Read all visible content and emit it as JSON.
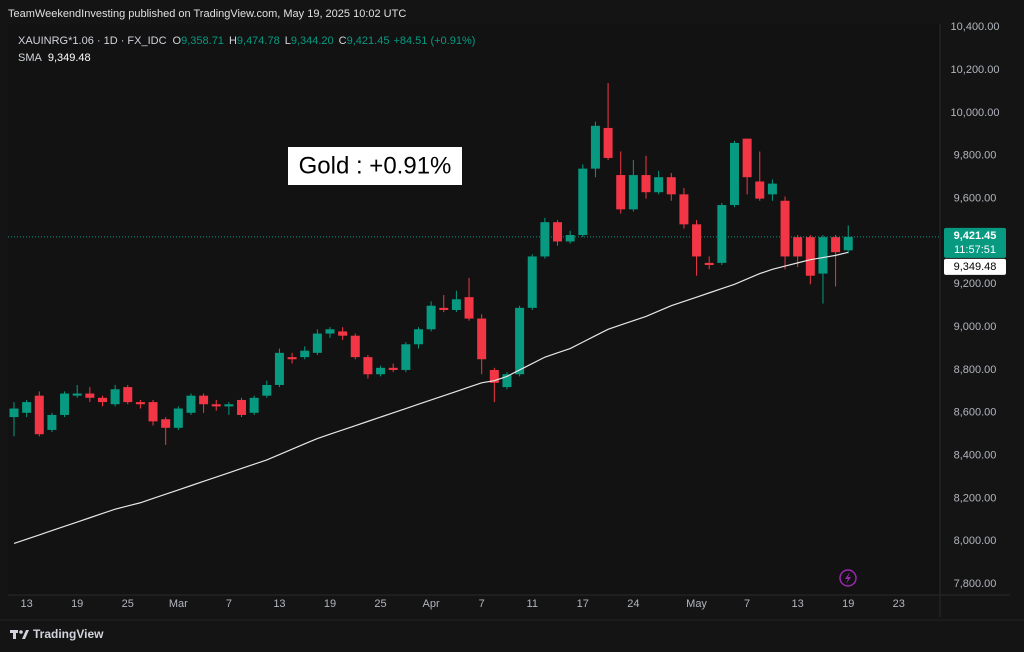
{
  "header": {
    "attribution": "TeamWeekendInvesting published on TradingView.com, May 19, 2025 10:02 UTC",
    "footer": "TradingView"
  },
  "chart_data": {
    "type": "candlestick",
    "legend": {
      "symbol": "XAUINRG*1.06 · 1D · FX_IDC",
      "open_label": "O",
      "open": "9,358.71",
      "high_label": "H",
      "high": "9,474.78",
      "low_label": "L",
      "low": "9,344.20",
      "close_label": "C",
      "close": "9,421.45",
      "change": "+84.51 (+0.91%)",
      "sma_label": "SMA",
      "sma": "9,349.48"
    },
    "annotation": "Gold : +0.91%",
    "categories": [
      null,
      "13",
      null,
      null,
      null,
      "19",
      null,
      null,
      null,
      "25",
      null,
      null,
      null,
      "Mar",
      null,
      null,
      null,
      "7",
      null,
      null,
      null,
      "13",
      null,
      null,
      null,
      "19",
      null,
      null,
      null,
      "25",
      null,
      null,
      null,
      "Apr",
      null,
      null,
      null,
      "7",
      null,
      null,
      null,
      "11",
      null,
      null,
      null,
      "17",
      null,
      null,
      null,
      "24",
      null,
      null,
      null,
      null,
      "May",
      null,
      null,
      null,
      "7",
      null,
      null,
      null,
      "13",
      null,
      null,
      null,
      "19",
      null,
      null,
      null,
      "23"
    ],
    "ohlc": {
      "up_color": "#089981",
      "down_color": "#f23645",
      "open": [
        8580,
        8600,
        8680,
        8520,
        8590,
        8680,
        8690,
        8670,
        8640,
        8720,
        8650,
        8650,
        8570,
        8530,
        8600,
        8680,
        8640,
        8630,
        8660,
        8600,
        8680,
        8730,
        8860,
        8860,
        8880,
        8970,
        8980,
        8960,
        8860,
        8780,
        8810,
        8800,
        8920,
        8990,
        9090,
        9080,
        9140,
        9040,
        8800,
        8720,
        8780,
        9090,
        9330,
        9490,
        9400,
        9430,
        9740,
        9930,
        9710,
        9550,
        9710,
        9630,
        9700,
        9620,
        9480,
        9300,
        9300,
        9570,
        9880,
        9680,
        9620,
        9590,
        9420,
        9420,
        9250,
        9420,
        9358.71,
        null,
        null,
        null,
        null
      ],
      "high": [
        8650,
        8660,
        8700,
        8600,
        8700,
        8730,
        8720,
        8680,
        8730,
        8730,
        8660,
        8660,
        8580,
        8630,
        8690,
        8690,
        8660,
        8650,
        8670,
        8680,
        8750,
        8900,
        8880,
        8910,
        8990,
        9000,
        9000,
        8970,
        8870,
        8820,
        8830,
        8930,
        9000,
        9120,
        9150,
        9170,
        9230,
        9060,
        8810,
        8790,
        9100,
        9340,
        9510,
        9500,
        9450,
        9760,
        9960,
        10140,
        9820,
        9780,
        9800,
        9730,
        9720,
        9650,
        9500,
        9330,
        9580,
        9870,
        9880,
        9820,
        9690,
        9610,
        9430,
        9430,
        9430,
        9430,
        9474.78,
        null,
        null,
        null,
        null
      ],
      "low": [
        8490,
        8580,
        8490,
        8510,
        8580,
        8670,
        8650,
        8630,
        8630,
        8640,
        8620,
        8540,
        8450,
        8520,
        8590,
        8600,
        8610,
        8590,
        8580,
        8590,
        8670,
        8720,
        8830,
        8850,
        8870,
        8950,
        8940,
        8850,
        8760,
        8770,
        8790,
        8790,
        8900,
        8980,
        9070,
        9070,
        9030,
        8780,
        8650,
        8710,
        8770,
        9080,
        9320,
        9380,
        9390,
        9420,
        9700,
        9780,
        9530,
        9540,
        9600,
        9620,
        9590,
        9460,
        9240,
        9270,
        9290,
        9560,
        9620,
        9590,
        9590,
        9270,
        9280,
        9200,
        9110,
        9190,
        9344.2,
        null,
        null,
        null,
        null
      ],
      "close": [
        8620,
        8650,
        8500,
        8590,
        8690,
        8690,
        8670,
        8650,
        8710,
        8650,
        8640,
        8560,
        8530,
        8620,
        8680,
        8640,
        8630,
        8640,
        8590,
        8670,
        8730,
        8880,
        8850,
        8890,
        8970,
        8990,
        8960,
        8860,
        8780,
        8810,
        8800,
        8920,
        8990,
        9100,
        9080,
        9130,
        9040,
        8850,
        8740,
        8780,
        9090,
        9330,
        9490,
        9400,
        9430,
        9740,
        9940,
        9790,
        9550,
        9710,
        9630,
        9700,
        9620,
        9480,
        9330,
        9290,
        9570,
        9860,
        9700,
        9600,
        9670,
        9330,
        9330,
        9240,
        9420,
        9350,
        9421.45,
        null,
        null,
        null,
        null
      ]
    },
    "sma": {
      "color": "#e6e6e6",
      "values": [
        7990,
        8010,
        8030,
        8050,
        8070,
        8090,
        8110,
        8130,
        8150,
        8165,
        8180,
        8200,
        8220,
        8240,
        8260,
        8280,
        8300,
        8320,
        8340,
        8360,
        8380,
        8405,
        8430,
        8455,
        8480,
        8500,
        8520,
        8540,
        8560,
        8580,
        8600,
        8620,
        8640,
        8660,
        8680,
        8700,
        8720,
        8740,
        8750,
        8770,
        8800,
        8830,
        8860,
        8880,
        8900,
        8930,
        8960,
        8990,
        9010,
        9030,
        9050,
        9075,
        9100,
        9120,
        9140,
        9160,
        9180,
        9200,
        9225,
        9250,
        9270,
        9285,
        9300,
        9315,
        9325,
        9335,
        9349.48,
        null,
        null,
        null,
        null
      ]
    },
    "ylim": [
      7740,
      10420
    ],
    "yticks": [
      {
        "value": 7800,
        "label": "7,800.00"
      },
      {
        "value": 8000,
        "label": "8,000.00"
      },
      {
        "value": 8200,
        "label": "8,200.00"
      },
      {
        "value": 8400,
        "label": "8,400.00"
      },
      {
        "value": 8600,
        "label": "8,600.00"
      },
      {
        "value": 8800,
        "label": "8,800.00"
      },
      {
        "value": 9000,
        "label": "9,000.00"
      },
      {
        "value": 9200,
        "label": "9,200.00"
      },
      {
        "value": 9400,
        "label": "9,400.00"
      },
      {
        "value": 9600,
        "label": "9,600.00"
      },
      {
        "value": 9800,
        "label": "9,800.00"
      },
      {
        "value": 10000,
        "label": "10,000.00"
      },
      {
        "value": 10200,
        "label": "10,200.00"
      },
      {
        "value": 10400,
        "label": "10,400.00"
      }
    ],
    "grid": false,
    "last_price": {
      "value": 9421.45,
      "label": "9,421.45"
    },
    "countdown": "11:57:51",
    "sma_last": {
      "value": 9349.48,
      "label": "9,349.48"
    }
  }
}
